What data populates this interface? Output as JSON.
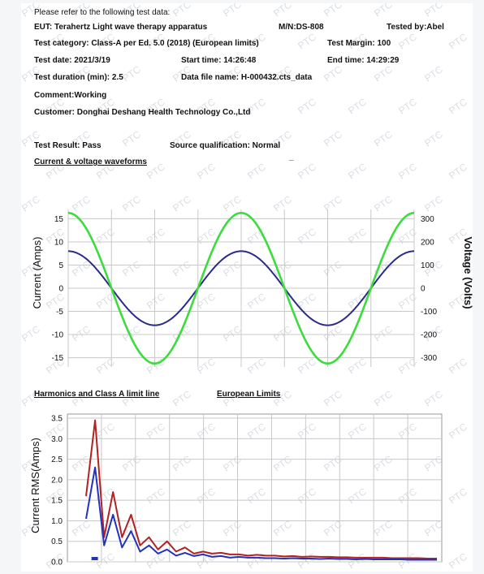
{
  "header": {
    "intro": "Please refer to the following test data:",
    "eut": "EUT: Terahertz Light wave therapy apparatus",
    "model": "M/N:DS-808",
    "tested_by": "Tested by:Abel",
    "category": "Test category: Class-A per Ed. 5.0 (2018) (European limits)",
    "margin": "Test Margin: 100",
    "date": "Test date: 2021/3/19",
    "start": "Start time: 14:26:48",
    "end": "End time: 14:29:29",
    "duration": "Test duration (min): 2.5",
    "datafile": "Data file name: H-000432.cts_data",
    "comment": "Comment:Working",
    "customer": "Customer: Donghai Deshang Health Technology Co.,Ltd",
    "result": "Test Result: Pass",
    "source": "Source qualification: Normal",
    "dash": "_"
  },
  "colors": {
    "voltage": "#3ddc3d",
    "current": "#2a2a8c",
    "limit": "#b22222",
    "harm": "#2233bb",
    "grid": "#c8c8c8"
  },
  "watermark": "PTC",
  "chart_data": [
    {
      "type": "line",
      "title": "Current & voltage waveforms",
      "ylabel": "Current (Amps)",
      "y2label": "Voltage (Volts)",
      "yticks": [
        "15",
        "10",
        "5",
        "0",
        "-5",
        "-10",
        "-15"
      ],
      "y2ticks": [
        "300",
        "200",
        "100",
        "0",
        "-100",
        "-200",
        "-300"
      ],
      "ylim": [
        -17,
        17
      ],
      "y2lim": [
        -340,
        340
      ],
      "grid": true,
      "series": [
        {
          "axis": "left",
          "amplitude": 8,
          "phase": "cos",
          "periods": 2,
          "color": "current"
        },
        {
          "axis": "right",
          "amplitude": 325,
          "phase": "cos",
          "periods": 2,
          "color": "voltage"
        }
      ]
    },
    {
      "type": "line",
      "title": "Harmonics and Class A limit line",
      "subtitle": "European Limits",
      "ylabel": "Current RMS(Amps)",
      "yticks": [
        "3.5",
        "3.0",
        "2.5",
        "2.0",
        "1.5",
        "1.0",
        "0.5",
        "0.0"
      ],
      "ylim": [
        0,
        3.6
      ],
      "grid": true,
      "limit_values": [
        1.6,
        3.45,
        0.6,
        1.7,
        0.6,
        1.15,
        0.4,
        0.6,
        0.3,
        0.5,
        0.25,
        0.35,
        0.2,
        0.25,
        0.2,
        0.22,
        0.18,
        0.18,
        0.15,
        0.17,
        0.15,
        0.15,
        0.13,
        0.14,
        0.12,
        0.13,
        0.12,
        0.12,
        0.11,
        0.11,
        0.1,
        0.1,
        0.1,
        0.1,
        0.09,
        0.09,
        0.09,
        0.09,
        0.08,
        0.08
      ],
      "current_values": [
        1.05,
        2.3,
        0.4,
        1.15,
        0.35,
        0.75,
        0.25,
        0.4,
        0.2,
        0.3,
        0.15,
        0.22,
        0.14,
        0.18,
        0.12,
        0.14,
        0.1,
        0.12,
        0.1,
        0.1,
        0.09,
        0.09,
        0.08,
        0.09,
        0.08,
        0.08,
        0.07,
        0.08,
        0.07,
        0.07,
        0.06,
        0.07,
        0.06,
        0.06,
        0.06,
        0.06,
        0.05,
        0.05,
        0.05,
        0.05
      ]
    }
  ]
}
